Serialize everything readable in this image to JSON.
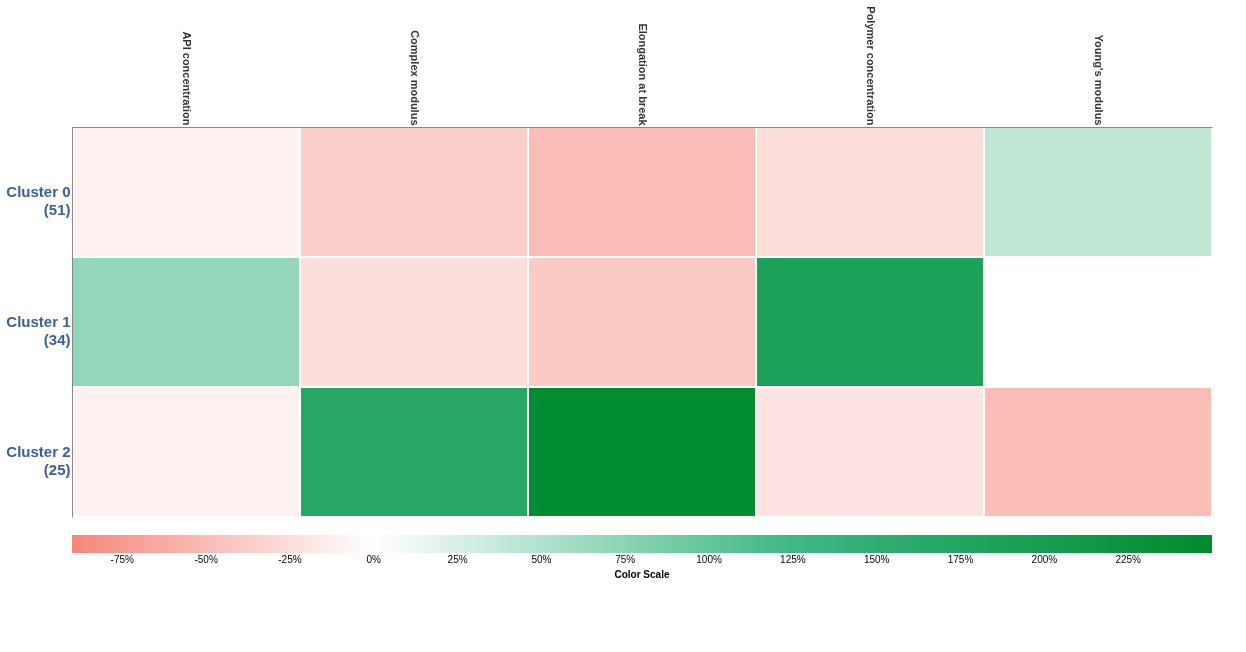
{
  "chart_data": {
    "type": "heatmap",
    "clabel": "Color Scale",
    "categories": [
      "API concentration",
      "Complex modulus",
      "Elongation at break",
      "Polymer concentration",
      "Young's modulus"
    ],
    "y_categories": [
      "Cluster 0\n(51)",
      "Cluster 1\n(34)",
      "Cluster 2\n(25)"
    ],
    "cells": [
      [
        -10,
        -35,
        -50,
        -25,
        40
      ],
      [
        70,
        -25,
        -40,
        190,
        0
      ],
      [
        -10,
        170,
        245,
        -20,
        -50
      ]
    ],
    "clim": [
      -90,
      250
    ],
    "cticks": [
      {
        "value": -75,
        "label": "-75%"
      },
      {
        "value": -50,
        "label": "-50%"
      },
      {
        "value": -25,
        "label": "-25%"
      },
      {
        "value": 0,
        "label": "0%"
      },
      {
        "value": 25,
        "label": "25%"
      },
      {
        "value": 50,
        "label": "50%"
      },
      {
        "value": 75,
        "label": "75%"
      },
      {
        "value": 100,
        "label": "100%"
      },
      {
        "value": 125,
        "label": "125%"
      },
      {
        "value": 150,
        "label": "150%"
      },
      {
        "value": 175,
        "label": "175%"
      },
      {
        "value": 200,
        "label": "200%"
      },
      {
        "value": 225,
        "label": "225%"
      }
    ]
  }
}
